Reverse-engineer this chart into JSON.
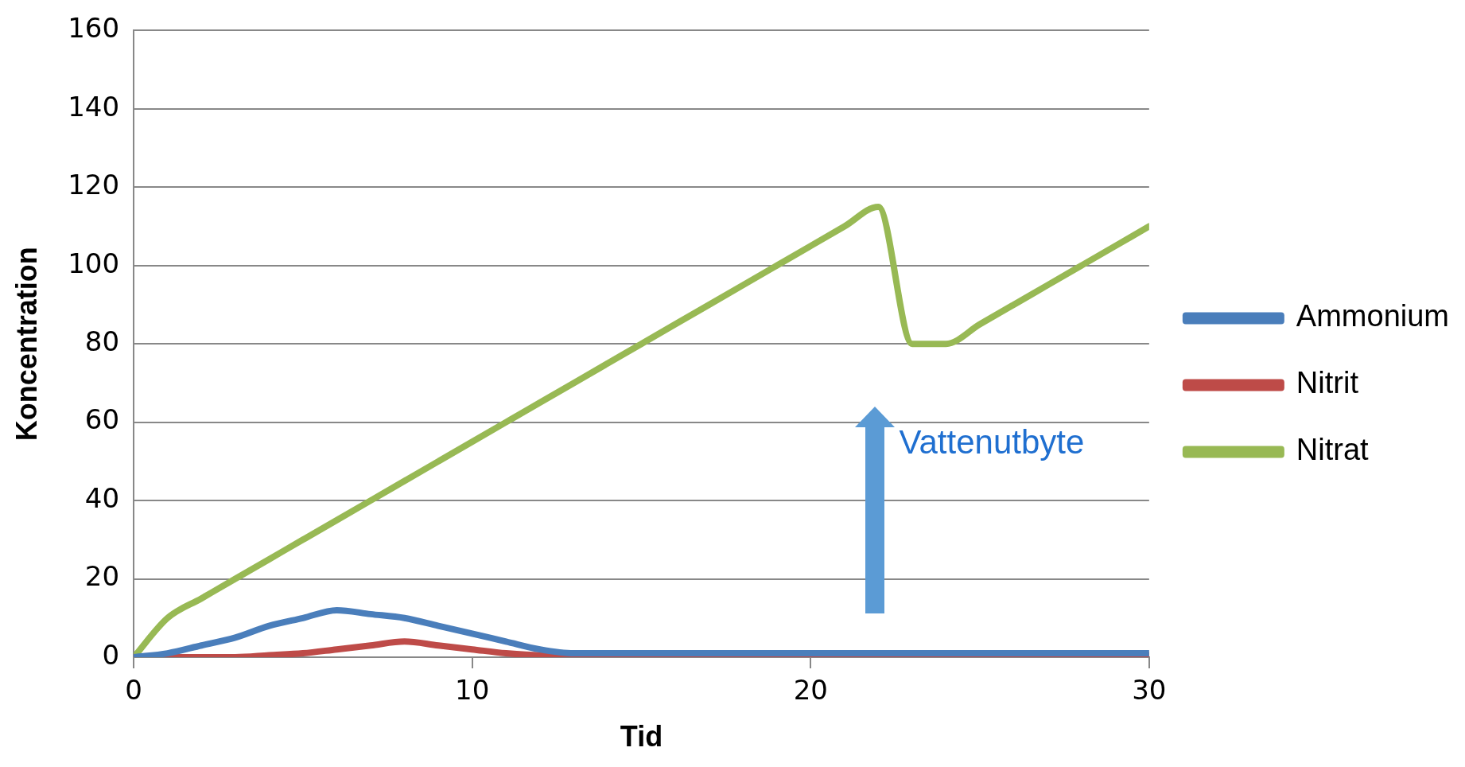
{
  "chart_data": {
    "type": "line",
    "xlabel": "Tid",
    "ylabel": "Koncentration",
    "x": [
      0,
      1,
      2,
      3,
      4,
      5,
      6,
      7,
      8,
      9,
      10,
      11,
      12,
      13,
      14,
      15,
      16,
      17,
      18,
      19,
      20,
      21,
      22,
      23,
      24,
      25,
      26,
      27,
      28,
      29,
      30
    ],
    "xlim": [
      0,
      30
    ],
    "xticks": [
      0,
      10,
      20,
      30
    ],
    "ylim": [
      0,
      160
    ],
    "yticks": [
      0,
      20,
      40,
      60,
      80,
      100,
      120,
      140,
      160
    ],
    "series": [
      {
        "name": "Ammonium",
        "color": "#4a7ebb",
        "values": [
          0,
          1,
          3,
          5,
          8,
          10,
          12,
          11,
          10,
          8,
          6,
          4,
          2,
          1,
          1,
          1,
          1,
          1,
          1,
          1,
          1,
          1,
          1,
          1,
          1,
          1,
          1,
          1,
          1,
          1,
          1
        ]
      },
      {
        "name": "Nitrit",
        "color": "#be4b48",
        "values": [
          0,
          0,
          0,
          0,
          0.5,
          1,
          2,
          3,
          4,
          3,
          2,
          1,
          0.5,
          0.5,
          0.5,
          0.5,
          0.5,
          0.5,
          0.5,
          0.5,
          0.5,
          0.5,
          0.5,
          0.5,
          0.5,
          0.5,
          0.5,
          0.5,
          0.5,
          0.5,
          0.5
        ]
      },
      {
        "name": "Nitrat",
        "color": "#98b954",
        "values": [
          0,
          10,
          15,
          20,
          25,
          30,
          35,
          40,
          45,
          50,
          55,
          60,
          65,
          70,
          75,
          80,
          85,
          90,
          95,
          100,
          105,
          110,
          115,
          80,
          80,
          85,
          90,
          95,
          100,
          105,
          110
        ]
      }
    ],
    "annotations": [
      "Vattenutbyte"
    ],
    "grid": "y",
    "legend": "right",
    "marker": "none",
    "line_style": "solid"
  }
}
